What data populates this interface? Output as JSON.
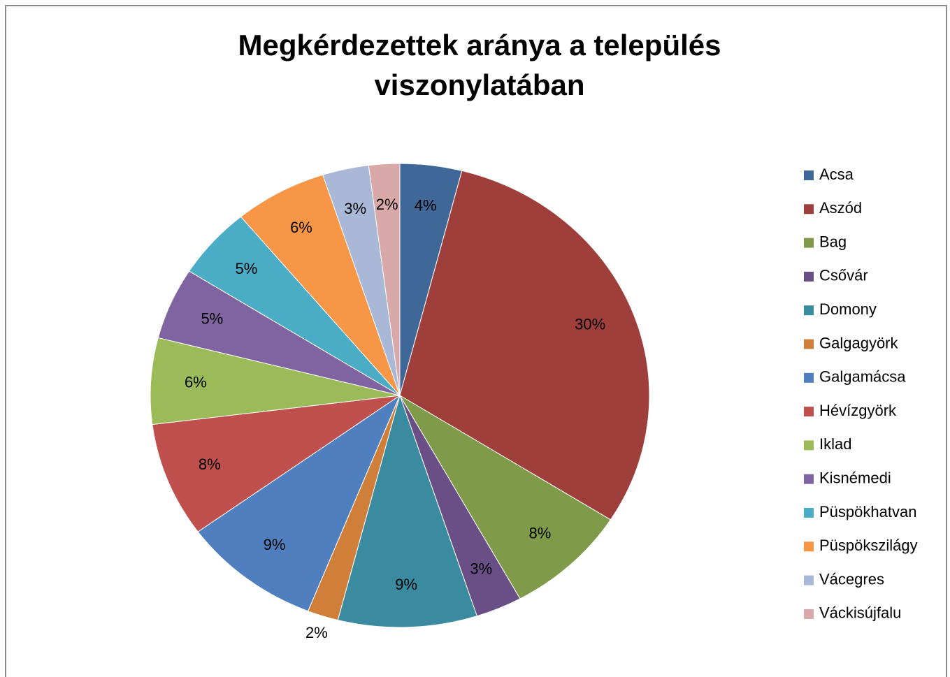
{
  "chart_data": {
    "type": "pie",
    "title": "Megkérdezettek aránya a település viszonylatában",
    "categories": [
      "Acsa",
      "Aszód",
      "Bag",
      "Csővár",
      "Domony",
      "Galgagyörk",
      "Galgamácsa",
      "Hévízgyörk",
      "Iklad",
      "Kisnémedi",
      "Püspökhatvan",
      "Püspökszilágy",
      "Vácegres",
      "Váckisújfalu"
    ],
    "values": [
      4,
      30,
      8,
      3,
      9,
      2,
      9,
      8,
      6,
      5,
      5,
      6,
      3,
      2
    ],
    "value_labels": [
      "4%",
      "30%",
      "8%",
      "3%",
      "9%",
      "2%",
      "9%",
      "8%",
      "6%",
      "5%",
      "5%",
      "6%",
      "3%",
      "2%"
    ],
    "colors": [
      "#3f6898",
      "#9e3f3c",
      "#7f9a48",
      "#6a4f87",
      "#3a8ba0",
      "#d07f3a",
      "#4f7fbf",
      "#c0504d",
      "#9bbb59",
      "#8064a2",
      "#4bacc6",
      "#f79646",
      "#aab8d8",
      "#d9a8a8"
    ],
    "legend": "right"
  }
}
